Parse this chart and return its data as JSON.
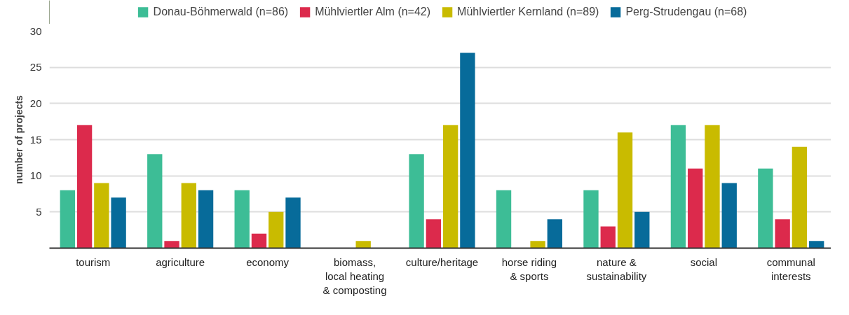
{
  "chart_data": {
    "type": "bar",
    "ylabel": "number of projects",
    "categories": [
      "tourism",
      "agriculture",
      "economy",
      "biomass,\nlocal heating\n& composting",
      "culture/heritage",
      "horse riding\n& sports",
      "nature &\nsustainability",
      "social",
      "communal\ninterests"
    ],
    "series": [
      {
        "name": "Donau-Böhmerwald (n=86)",
        "color": "#3dbd96",
        "values": [
          8,
          13,
          8,
          0,
          13,
          8,
          8,
          17,
          11
        ]
      },
      {
        "name": "Mühlviertler Alm (n=42)",
        "color": "#dc2a4c",
        "values": [
          17,
          1,
          2,
          0,
          4,
          0,
          3,
          11,
          4
        ]
      },
      {
        "name": "Mühlviertler Kernland (n=89)",
        "color": "#c9bb00",
        "values": [
          9,
          9,
          5,
          1,
          17,
          1,
          16,
          17,
          14
        ]
      },
      {
        "name": "Perg-Strudengau (n=68)",
        "color": "#076b9a",
        "values": [
          7,
          8,
          7,
          0,
          27,
          4,
          5,
          9,
          1
        ]
      }
    ],
    "ylim": [
      0,
      30
    ],
    "yticks": [
      5,
      10,
      15,
      20,
      25,
      30
    ],
    "grid": "y",
    "legend": "top"
  }
}
